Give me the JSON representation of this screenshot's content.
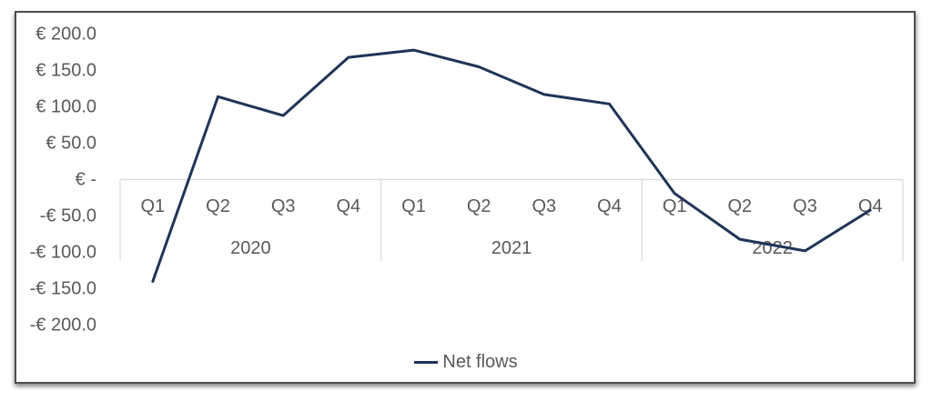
{
  "chart_data": {
    "type": "line",
    "title": "",
    "categories": [
      "Q1",
      "Q2",
      "Q3",
      "Q4",
      "Q1",
      "Q2",
      "Q3",
      "Q4",
      "Q1",
      "Q2",
      "Q3",
      "Q4"
    ],
    "category_groups": [
      {
        "label": "2020",
        "span": 4
      },
      {
        "label": "2021",
        "span": 4
      },
      {
        "label": "2022",
        "span": 4
      }
    ],
    "series": [
      {
        "name": "Net flows",
        "values": [
          -140,
          114,
          88,
          168,
          178,
          155,
          117,
          104,
          -19,
          -82,
          -98,
          -42
        ]
      }
    ],
    "y_axis": {
      "min": -200,
      "max": 200,
      "step": 50,
      "ticks": [
        {
          "value": 200,
          "label": "€ 200.0"
        },
        {
          "value": 150,
          "label": "€ 150.0"
        },
        {
          "value": 100,
          "label": "€ 100.0"
        },
        {
          "value": 50,
          "label": "€ 50.0"
        },
        {
          "value": 0,
          "label": "€ -"
        },
        {
          "value": -50,
          "label": "-€ 50.0"
        },
        {
          "value": -100,
          "label": "-€ 100.0"
        },
        {
          "value": -150,
          "label": "-€ 150.0"
        },
        {
          "value": -200,
          "label": "-€ 200.0"
        }
      ]
    },
    "legend": {
      "label": "Net flows",
      "position": "bottom"
    },
    "gridlines": false,
    "colors": {
      "line": "#1f3456",
      "axis_text": "#595959",
      "axis_line": "#d9d9d9",
      "frame_border": "#4d4d4d"
    }
  }
}
